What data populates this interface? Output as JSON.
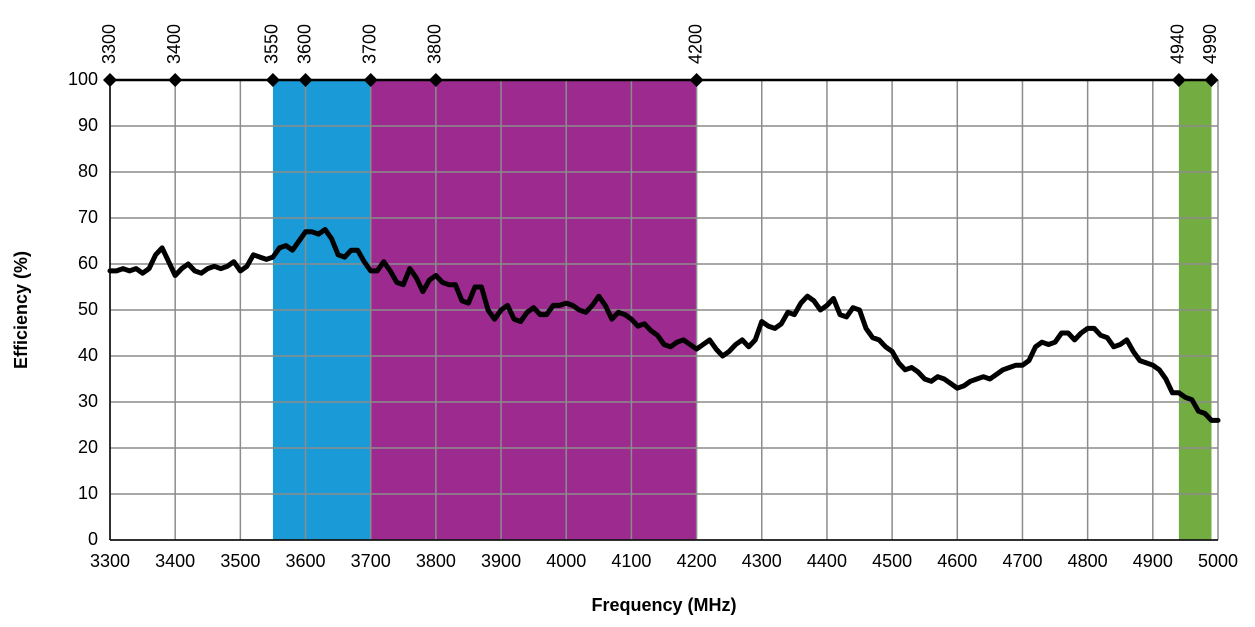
{
  "chart_data": {
    "type": "line",
    "xlabel": "Frequency (MHz)",
    "ylabel": "Efficiency (%)",
    "color": "#000000",
    "x": [
      3300,
      3310,
      3320,
      3330,
      3340,
      3350,
      3360,
      3370,
      3380,
      3390,
      3400,
      3410,
      3420,
      3430,
      3440,
      3450,
      3460,
      3470,
      3480,
      3490,
      3500,
      3510,
      3520,
      3530,
      3540,
      3550,
      3560,
      3570,
      3580,
      3590,
      3600,
      3610,
      3620,
      3630,
      3640,
      3650,
      3660,
      3670,
      3680,
      3690,
      3700,
      3710,
      3720,
      3730,
      3740,
      3750,
      3760,
      3770,
      3780,
      3790,
      3800,
      3810,
      3820,
      3830,
      3840,
      3850,
      3860,
      3870,
      3880,
      3890,
      3900,
      3910,
      3920,
      3930,
      3940,
      3950,
      3960,
      3970,
      3980,
      3990,
      4000,
      4010,
      4020,
      4030,
      4040,
      4050,
      4060,
      4070,
      4080,
      4090,
      4100,
      4110,
      4120,
      4130,
      4140,
      4150,
      4160,
      4170,
      4180,
      4190,
      4200,
      4210,
      4220,
      4230,
      4240,
      4250,
      4260,
      4270,
      4280,
      4290,
      4300,
      4310,
      4320,
      4330,
      4340,
      4350,
      4360,
      4370,
      4380,
      4390,
      4400,
      4410,
      4420,
      4430,
      4440,
      4450,
      4460,
      4470,
      4480,
      4490,
      4500,
      4510,
      4520,
      4530,
      4540,
      4550,
      4560,
      4570,
      4580,
      4590,
      4600,
      4610,
      4620,
      4630,
      4640,
      4650,
      4660,
      4670,
      4680,
      4690,
      4700,
      4710,
      4720,
      4730,
      4740,
      4750,
      4760,
      4770,
      4780,
      4790,
      4800,
      4810,
      4820,
      4830,
      4840,
      4850,
      4860,
      4870,
      4880,
      4890,
      4900,
      4910,
      4920,
      4930,
      4940,
      4950,
      4960,
      4970,
      4980,
      4990,
      5000
    ],
    "values": [
      58.5,
      58.5,
      59,
      58.5,
      59,
      58,
      59,
      62,
      63.5,
      60.5,
      57.5,
      59,
      60,
      58.5,
      58,
      59,
      59.5,
      59,
      59.5,
      60.5,
      58.5,
      59.5,
      62,
      61.5,
      61,
      61.5,
      63.5,
      64,
      63,
      65,
      67,
      67,
      66.5,
      67.5,
      65.5,
      62,
      61.5,
      63,
      63,
      60.5,
      58.5,
      58.5,
      60.5,
      58.5,
      56,
      55.5,
      59,
      57,
      54,
      56.5,
      57.5,
      56,
      55.5,
      55.5,
      52,
      51.5,
      55,
      55,
      50,
      48,
      50,
      51,
      48,
      47.5,
      49.5,
      50.5,
      49,
      49,
      51,
      51,
      51.5,
      51,
      50,
      49.5,
      51,
      53,
      51,
      48,
      49.5,
      49,
      48,
      46.5,
      47,
      45.5,
      44.5,
      42.5,
      42,
      43,
      43.5,
      42.5,
      41.5,
      42.5,
      43.5,
      41.5,
      40,
      41,
      42.5,
      43.5,
      42,
      43.5,
      47.5,
      46.5,
      46,
      47,
      49.5,
      49,
      51.5,
      53,
      52,
      50,
      51,
      52.5,
      49,
      48.5,
      50.5,
      50,
      46,
      44,
      43.5,
      42,
      41,
      38.5,
      37,
      37.5,
      36.5,
      35,
      34.5,
      35.5,
      35,
      34,
      33,
      33.5,
      34.5,
      35,
      35.5,
      35,
      36,
      37,
      37.5,
      38,
      38,
      39,
      42,
      43,
      42.5,
      43,
      45,
      45,
      43.5,
      45,
      46,
      46,
      44.5,
      44,
      42,
      42.5,
      43.5,
      41,
      39,
      38.5,
      38,
      37,
      35,
      32,
      32,
      31,
      30.5,
      28,
      27.5,
      26,
      26
    ],
    "xlim": [
      3300,
      5000
    ],
    "ylim": [
      0,
      100
    ],
    "xticks": [
      3300,
      3400,
      3500,
      3600,
      3700,
      3800,
      3900,
      4000,
      4100,
      4200,
      4300,
      4400,
      4500,
      4600,
      4700,
      4800,
      4900,
      5000
    ],
    "yticks": [
      0,
      10,
      20,
      30,
      40,
      50,
      60,
      70,
      80,
      90,
      100
    ],
    "x2ticks": [
      3300,
      3400,
      3550,
      3600,
      3700,
      3800,
      4200,
      4940,
      4990
    ],
    "bands": [
      {
        "from": 3550,
        "to": 3700,
        "color": "#1a9bd7"
      },
      {
        "from": 3700,
        "to": 4200,
        "color": "#9c2a8f"
      },
      {
        "from": 4940,
        "to": 4990,
        "color": "#73ad41"
      }
    ],
    "grid": true
  }
}
